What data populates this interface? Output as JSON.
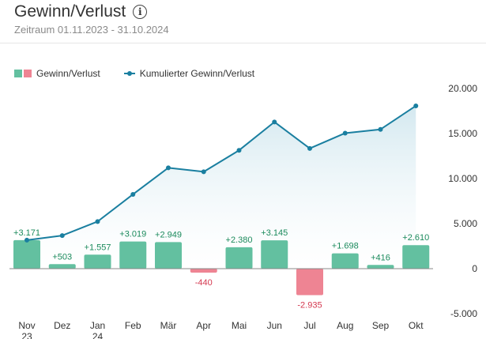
{
  "header": {
    "title": "Gewinn/Verlust",
    "subtitle": "Zeitraum 01.11.2023 - 31.10.2024"
  },
  "icons": {
    "info": "info-icon"
  },
  "colors": {
    "positive": "#63c0a0",
    "negative": "#ee8493",
    "positive_label": "#1b8a5c",
    "negative_label": "#d4384f",
    "line": "#1a7fa0",
    "area_top": "#cfe6ee"
  },
  "legend": {
    "bars_label": "Gewinn/Verlust",
    "line_label": "Kumulierter Gewinn/Verlust"
  },
  "chart_data": {
    "type": "bar",
    "title": "Gewinn/Verlust",
    "categories": [
      "Nov 23",
      "Dez",
      "Jan 24",
      "Feb",
      "Mär",
      "Apr",
      "Mai",
      "Jun",
      "Jul",
      "Aug",
      "Sep",
      "Okt"
    ],
    "category_lines": [
      [
        "Nov",
        "23"
      ],
      [
        "Dez"
      ],
      [
        "Jan",
        "24"
      ],
      [
        "Feb"
      ],
      [
        "Mär"
      ],
      [
        "Apr"
      ],
      [
        "Mai"
      ],
      [
        "Jun"
      ],
      [
        "Jul"
      ],
      [
        "Aug"
      ],
      [
        "Sep"
      ],
      [
        "Okt"
      ]
    ],
    "series": [
      {
        "name": "Gewinn/Verlust",
        "type": "bar",
        "values": [
          3171,
          503,
          1557,
          3019,
          2949,
          -440,
          2380,
          3145,
          -2935,
          1698,
          416,
          2610
        ],
        "labels": [
          "+3.171",
          "+503",
          "+1.557",
          "+3.019",
          "+2.949",
          "-440",
          "+2.380",
          "+3.145",
          "-2.935",
          "+1.698",
          "+416",
          "+2.610"
        ]
      },
      {
        "name": "Kumulierter Gewinn/Verlust",
        "type": "line",
        "values": [
          3171,
          3674,
          5231,
          8250,
          11199,
          10759,
          13139,
          16284,
          13349,
          15047,
          15463,
          18073
        ]
      }
    ],
    "yticks": [
      20000,
      15000,
      10000,
      5000,
      0,
      -5000
    ],
    "ytick_labels": [
      "20.000",
      "15.000",
      "10.000",
      "5.000",
      "0",
      "-5.000"
    ],
    "ylim": [
      -5000,
      20000
    ],
    "xlabel": "",
    "ylabel": "",
    "axis_position": "right"
  }
}
